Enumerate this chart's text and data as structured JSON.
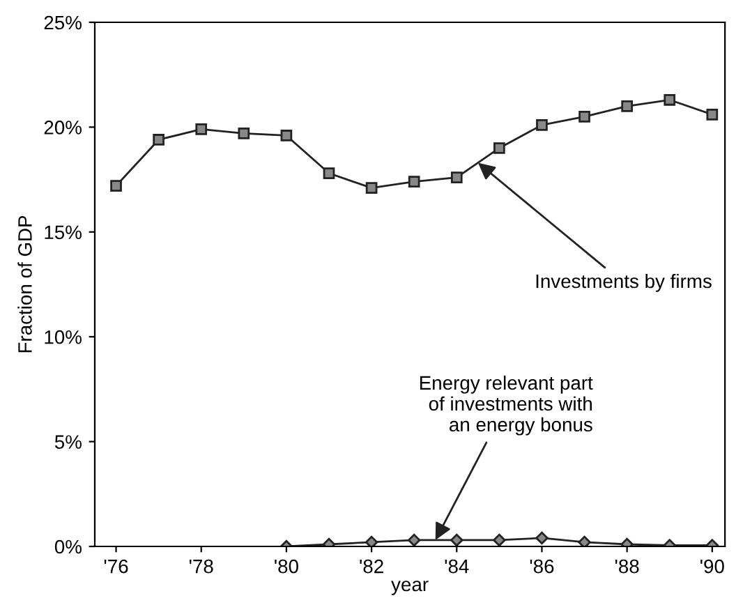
{
  "chart_data": {
    "type": "line",
    "xlabel": "year",
    "ylabel": "Fraction of GDP",
    "x": [
      1976,
      1977,
      1978,
      1979,
      1980,
      1981,
      1982,
      1983,
      1984,
      1985,
      1986,
      1987,
      1988,
      1989,
      1990
    ],
    "series": [
      {
        "color": "#222222",
        "marker": "square",
        "values": [
          17.2,
          19.4,
          19.9,
          19.7,
          19.6,
          17.8,
          17.1,
          17.4,
          17.6,
          19.0,
          20.1,
          20.5,
          21.0,
          21.3,
          20.6
        ]
      },
      {
        "color": "#222222",
        "marker": "diamond",
        "values": [
          null,
          null,
          null,
          null,
          0.0,
          0.1,
          0.2,
          0.3,
          0.3,
          0.3,
          0.4,
          0.2,
          0.1,
          0.05,
          0.05
        ]
      }
    ],
    "xlim": [
      1975.5,
      1990.3
    ],
    "ylim": [
      0,
      25
    ],
    "xticks": [
      {
        "value": 1976,
        "label": "'76"
      },
      {
        "value": 1978,
        "label": "'78"
      },
      {
        "value": 1980,
        "label": "'80"
      },
      {
        "value": 1982,
        "label": "'82"
      },
      {
        "value": 1984,
        "label": "'84"
      },
      {
        "value": 1986,
        "label": "'86"
      },
      {
        "value": 1988,
        "label": "'88"
      },
      {
        "value": 1990,
        "label": "'90"
      }
    ],
    "yticks": [
      {
        "value": 0,
        "label": "0%"
      },
      {
        "value": 5,
        "label": "5%"
      },
      {
        "value": 10,
        "label": "10%"
      },
      {
        "value": 15,
        "label": "15%"
      },
      {
        "value": 20,
        "label": "20%"
      },
      {
        "value": 25,
        "label": "25%"
      }
    ],
    "annotations": [
      {
        "text": "Investments by firms",
        "x": 1984.5,
        "y": 18.3
      },
      {
        "text": "Energy relevant part\nof investments with\nan energy bonus",
        "x": 1983.5,
        "y": 0.3
      }
    ],
    "grid": false,
    "line_style": "solid"
  }
}
